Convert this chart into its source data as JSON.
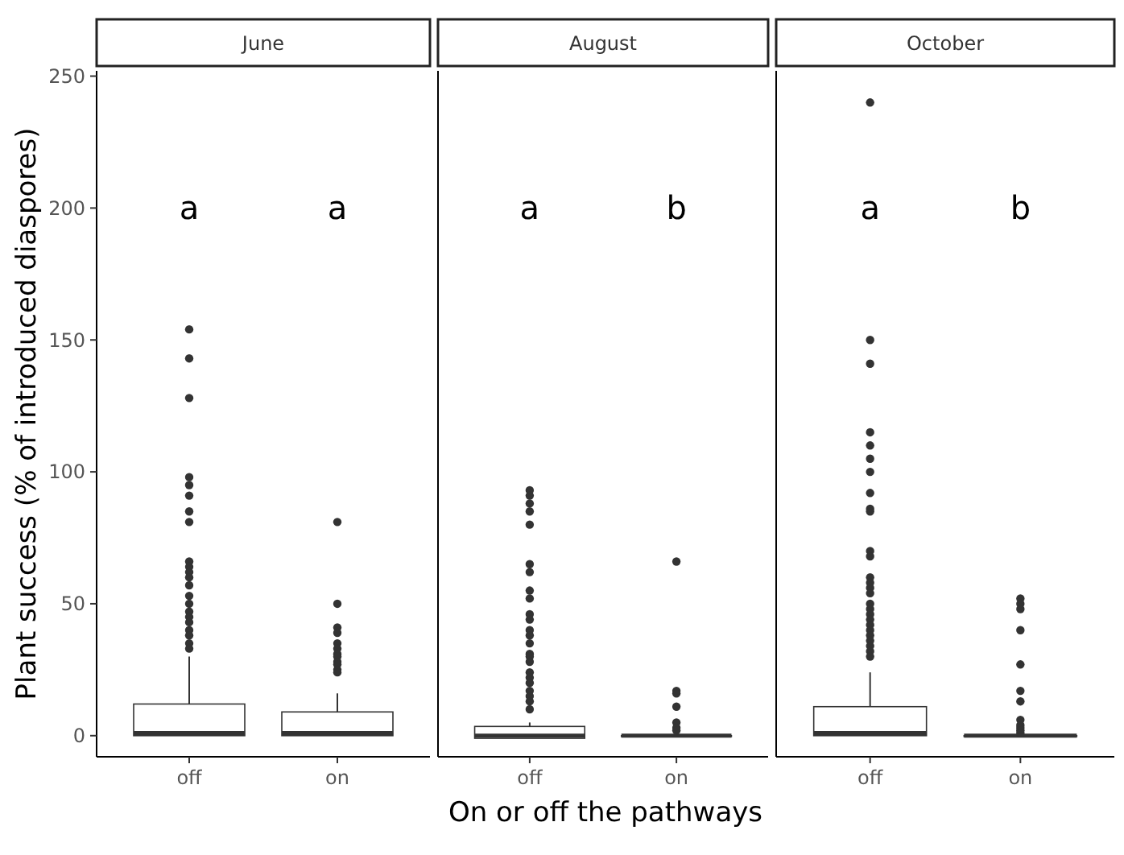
{
  "chart_data": [
    {
      "type": "box",
      "title": "June",
      "ylabel": "Plant success (% of introduced diaspores)",
      "categories": [
        "off",
        "on"
      ],
      "ylim": [
        -8,
        252
      ],
      "yticks": [
        0,
        50,
        100,
        150,
        200,
        250
      ],
      "grid": false,
      "annotations": [
        "a",
        "a"
      ],
      "boxes": [
        {
          "low": 0,
          "q1": 0,
          "median": 1,
          "q3": 12,
          "high": 30,
          "outliers": [
            154,
            143,
            128,
            98,
            95,
            91,
            85,
            81,
            66,
            64,
            62,
            60,
            57,
            53,
            50,
            47,
            45,
            43,
            40,
            38,
            35,
            33
          ]
        },
        {
          "low": 0,
          "q1": 0,
          "median": 1,
          "q3": 9,
          "high": 16,
          "outliers": [
            81,
            50,
            41,
            39,
            35,
            33,
            31,
            30,
            28,
            27,
            25,
            24
          ]
        }
      ]
    },
    {
      "type": "box",
      "title": "August",
      "xlabel": "On or off the pathways",
      "categories": [
        "off",
        "on"
      ],
      "ylim": [
        -8,
        252
      ],
      "tick_labels": "x",
      "grid": false,
      "annotations": [
        "a",
        "b"
      ],
      "boxes": [
        {
          "low": -1,
          "q1": -1,
          "median": 0,
          "q3": 3.5,
          "high": 5,
          "outliers": [
            93,
            91,
            88,
            85,
            80,
            65,
            62,
            55,
            52,
            46,
            44,
            40,
            38,
            35,
            31,
            30,
            28,
            24,
            22,
            20,
            17,
            15,
            13,
            10
          ]
        },
        {
          "low": 0,
          "q1": 0,
          "median": 0,
          "q3": 0,
          "high": 0,
          "outliers": [
            66,
            17,
            16,
            11,
            5,
            3,
            2
          ]
        }
      ]
    },
    {
      "type": "box",
      "title": "October",
      "categories": [
        "off",
        "on"
      ],
      "ylim": [
        -8,
        252
      ],
      "tick_labels": "x",
      "grid": false,
      "annotations": [
        "a",
        "b"
      ],
      "boxes": [
        {
          "low": 0,
          "q1": 0,
          "median": 1,
          "q3": 11,
          "high": 24,
          "outliers": [
            240,
            150,
            141,
            115,
            110,
            105,
            100,
            92,
            86,
            85,
            70,
            68,
            60,
            58,
            56,
            54,
            50,
            48,
            46,
            44,
            42,
            40,
            38,
            36,
            34,
            32,
            30
          ]
        },
        {
          "low": 0,
          "q1": 0,
          "median": 0,
          "q3": 0,
          "high": 0,
          "outliers": [
            52,
            50,
            48,
            40,
            27,
            17,
            13,
            6,
            4,
            3,
            2,
            1
          ]
        }
      ]
    }
  ]
}
